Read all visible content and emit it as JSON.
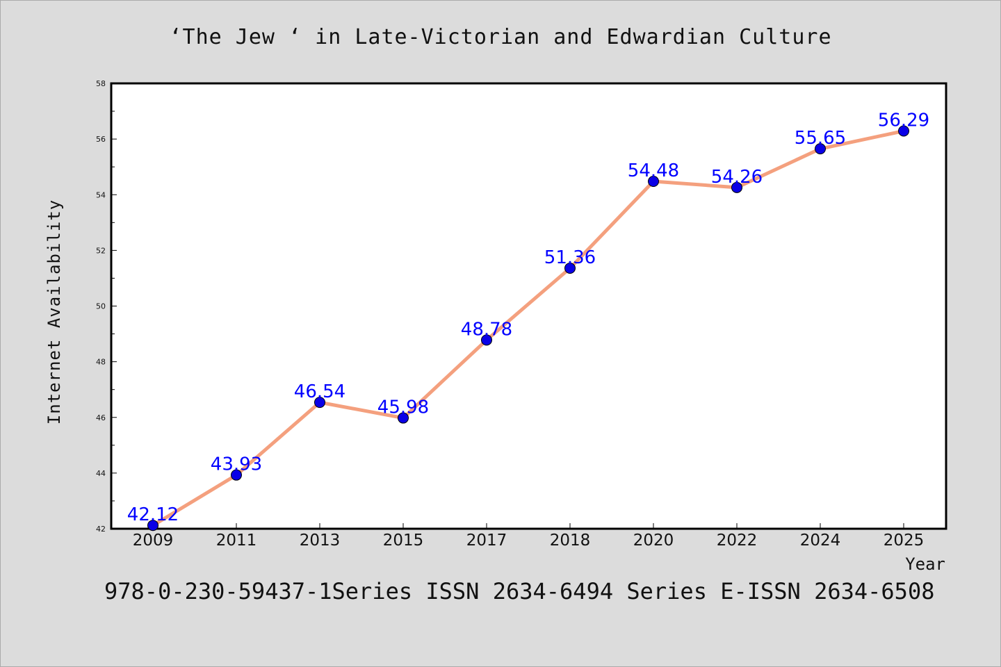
{
  "title": "‘The Jew ‘ in Late-Victorian and Edwardian Culture",
  "footer": "978-0-230-59437-1Series ISSN 2634-6494 Series E-ISSN 2634-6508",
  "chart_data": {
    "type": "line",
    "xlabel": "Year",
    "ylabel": "Internet Availability",
    "categories": [
      "2009",
      "2011",
      "2013",
      "2015",
      "2017",
      "2018",
      "2020",
      "2022",
      "2024",
      "2025"
    ],
    "series": [
      {
        "values": [
          42.12,
          43.93,
          46.54,
          45.98,
          48.78,
          51.36,
          54.48,
          54.26,
          55.65,
          56.29
        ],
        "data_labels": [
          "42.12",
          "43.93",
          "46.54",
          "45.98",
          "48.78",
          "51.36",
          "54.48",
          "54.26",
          "55.65",
          "56.29"
        ]
      }
    ],
    "ylim": [
      42,
      58
    ],
    "yticks": [
      "42",
      "44",
      "46",
      "48",
      "50",
      "52",
      "54",
      "56",
      "58"
    ],
    "grid": false,
    "line_color": "#f4a07e",
    "marker_color": "#0a00e6",
    "label_color": "#0000ff"
  }
}
